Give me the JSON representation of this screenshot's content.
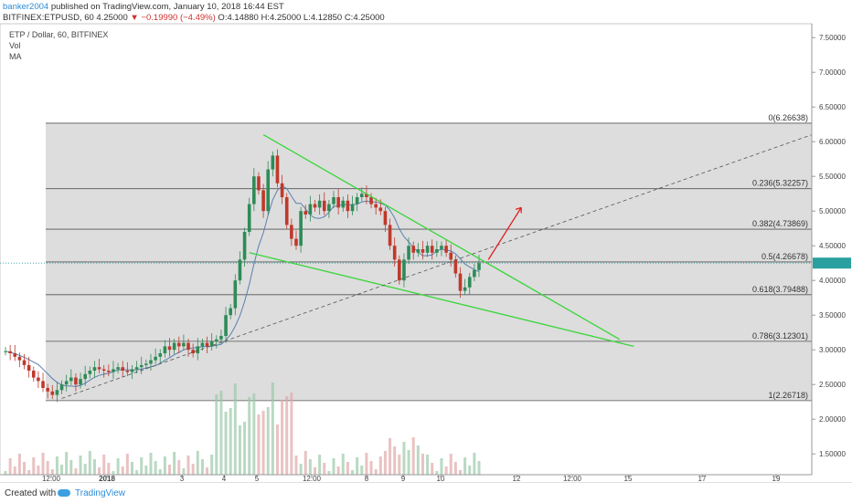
{
  "header": {
    "author": "banker2004",
    "published": " published on TradingView.com, January 10, 2018 16:44 EST",
    "line2_symbol": "BITFINEX:ETPUSD, 60  4.25000 ",
    "line2_change": "▼ −0.19990 (−4.49%)",
    "line2_ohlc": " O:4.14880 H:4.25000 L:4.12850 C:4.25000"
  },
  "legend": {
    "symbol": "ETP / Dollar, 60, BITFINEX",
    "vol": "Vol",
    "ma": "MA"
  },
  "footer": {
    "created_with": "Created with",
    "brand": "TradingView"
  },
  "colors": {
    "candle_up": "#2e8b57",
    "candle_down": "#c0392b",
    "triangle_lines": "#3ad63a",
    "arrow": "#e02020",
    "ma_line": "#5a7fb0",
    "fib_zone": "#d9d9d9"
  },
  "chart_data": {
    "type": "candlestick",
    "title": "ETP / Dollar, 60, BITFINEX",
    "ylim": [
      1.2,
      7.7
    ],
    "y_ticks": [
      "1.50000",
      "2.00000",
      "2.50000",
      "3.00000",
      "3.50000",
      "4.00000",
      "4.50000",
      "5.00000",
      "5.50000",
      "6.00000",
      "6.50000",
      "7.00000",
      "7.50000"
    ],
    "x_ticks": [
      "12:00",
      "2018",
      "3",
      "4",
      "5",
      "12:00",
      "8",
      "9",
      "10",
      "12",
      "12:00",
      "15",
      "17",
      "19"
    ],
    "current_price": 4.25,
    "fibonacci": [
      {
        "label": "0(6.26638)",
        "value": 6.26638
      },
      {
        "label": "0.236(5.32257)",
        "value": 5.32257
      },
      {
        "label": "0.382(4.73869)",
        "value": 4.73869
      },
      {
        "label": "0.5(4.26678)",
        "value": 4.26678
      },
      {
        "label": "0.618(3.79488)",
        "value": 3.79488
      },
      {
        "label": "0.786(3.12301)",
        "value": 3.12301
      },
      {
        "label": "1(2.26718)",
        "value": 2.26718
      }
    ],
    "approx_close_path": [
      2.98,
      2.95,
      2.9,
      2.85,
      2.78,
      2.7,
      2.6,
      2.55,
      2.45,
      2.4,
      2.35,
      2.42,
      2.5,
      2.55,
      2.6,
      2.5,
      2.58,
      2.65,
      2.7,
      2.75,
      2.72,
      2.7,
      2.68,
      2.72,
      2.75,
      2.7,
      2.68,
      2.72,
      2.75,
      2.78,
      2.8,
      2.85,
      2.9,
      2.95,
      3.05,
      3.0,
      3.1,
      3.05,
      3.1,
      3.0,
      2.95,
      3.05,
      3.1,
      3.05,
      3.12,
      3.15,
      3.2,
      3.5,
      3.6,
      4.0,
      4.3,
      4.7,
      5.1,
      5.5,
      5.3,
      5.0,
      5.6,
      5.8,
      5.4,
      5.2,
      4.8,
      4.6,
      4.5,
      5.0,
      4.95,
      5.1,
      5.05,
      5.15,
      5.0,
      5.1,
      5.2,
      5.05,
      5.15,
      5.0,
      5.1,
      5.2,
      5.25,
      5.2,
      5.1,
      5.05,
      5.0,
      4.8,
      4.5,
      4.3,
      4.0,
      4.3,
      4.5,
      4.4,
      4.45,
      4.4,
      4.5,
      4.4,
      4.45,
      4.5,
      4.4,
      4.3,
      4.1,
      3.85,
      3.9,
      4.05,
      4.15,
      4.25
    ]
  }
}
